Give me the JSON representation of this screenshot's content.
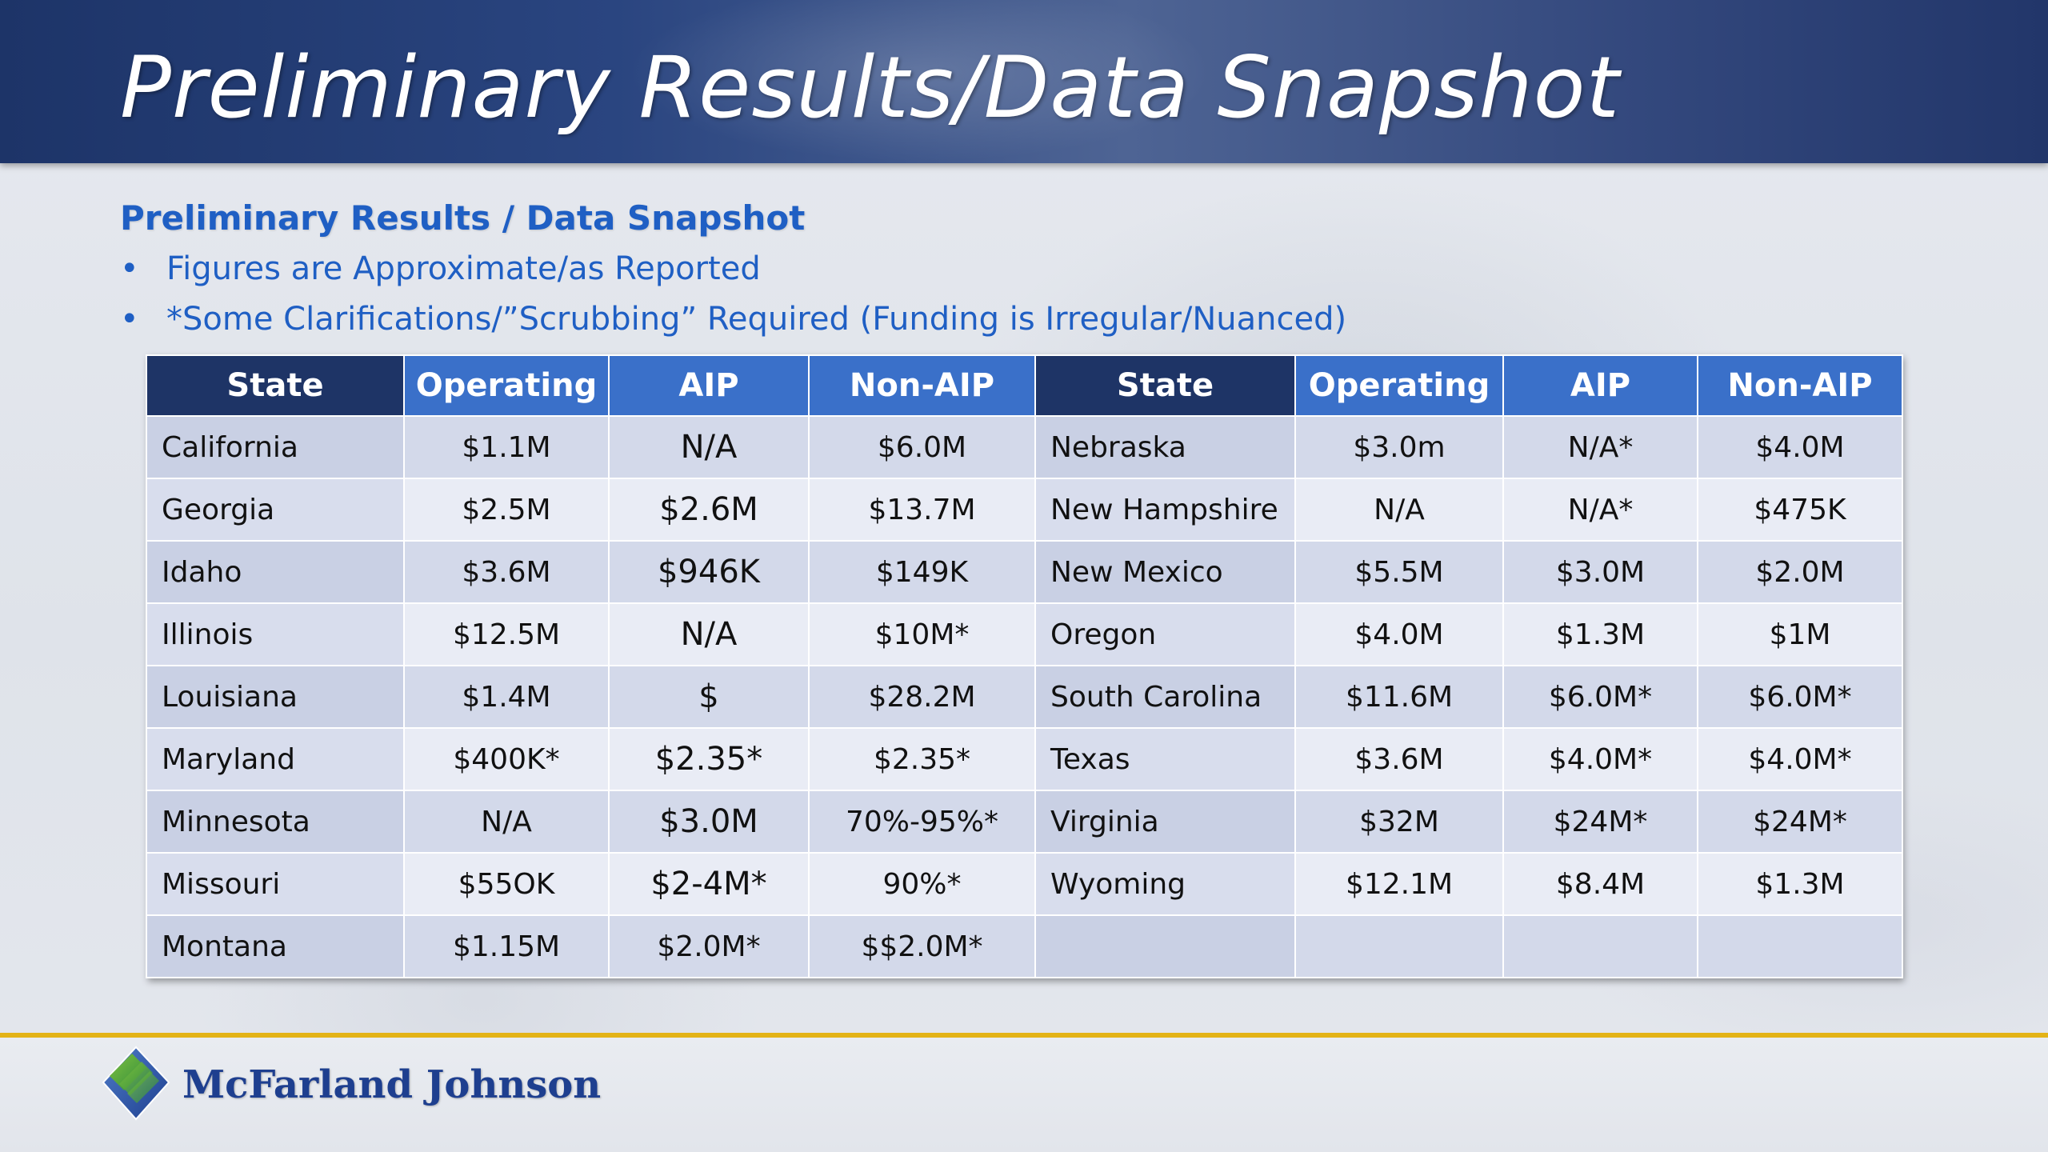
{
  "header": {
    "title": "Preliminary Results/Data Snapshot"
  },
  "content": {
    "subtitle": "Preliminary Results / Data Snapshot",
    "bullets": [
      "Figures are Approximate/as Reported",
      "*Some Clarifications/”Scrubbing” Required (Funding is Irregular/Nuanced)"
    ]
  },
  "table": {
    "headers": [
      "State",
      "Operating",
      "AIP",
      "Non-AIP",
      "State",
      "Operating",
      "AIP",
      "Non-AIP"
    ],
    "rows": [
      [
        "California",
        "$1.1M",
        "N/A",
        "$6.0M",
        "Nebraska",
        "$3.0m",
        "N/A*",
        "$4.0M"
      ],
      [
        "Georgia",
        "$2.5M",
        "$2.6M",
        "$13.7M",
        "New Hampshire",
        "N/A",
        "N/A*",
        "$475K"
      ],
      [
        "Idaho",
        "$3.6M",
        "$946K",
        "$149K",
        "New Mexico",
        "$5.5M",
        "$3.0M",
        "$2.0M"
      ],
      [
        "Illinois",
        "$12.5M",
        "N/A",
        "$10M*",
        "Oregon",
        "$4.0M",
        "$1.3M",
        "$1M"
      ],
      [
        "Louisiana",
        "$1.4M",
        "$",
        "$28.2M",
        "South Carolina",
        "$11.6M",
        "$6.0M*",
        "$6.0M*"
      ],
      [
        "Maryland",
        "$400K*",
        "$2.35*",
        "$2.35*",
        "Texas",
        "$3.6M",
        "$4.0M*",
        "$4.0M*"
      ],
      [
        "Minnesota",
        "N/A",
        "$3.0M",
        "70%-95%*",
        "Virginia",
        "$32M",
        "$24M*",
        "$24M*"
      ],
      [
        "Missouri",
        "$55OK",
        "$2-4M*",
        "90%*",
        "Wyoming",
        "$12.1M",
        "$8.4M",
        "$1.3M"
      ],
      [
        "Montana",
        "$1.15M",
        "$2.0M*",
        "$$2.0M*",
        "",
        "",
        "",
        ""
      ]
    ]
  },
  "footer": {
    "company": "McFarland Johnson",
    "logo_icon": "mcfarland-johnson-diamond-logo"
  },
  "colors": {
    "header_dark": "#1e3466",
    "header_blue": "#3a70c9",
    "accent_text": "#1f5fc4",
    "footer_line": "#e3b317"
  }
}
